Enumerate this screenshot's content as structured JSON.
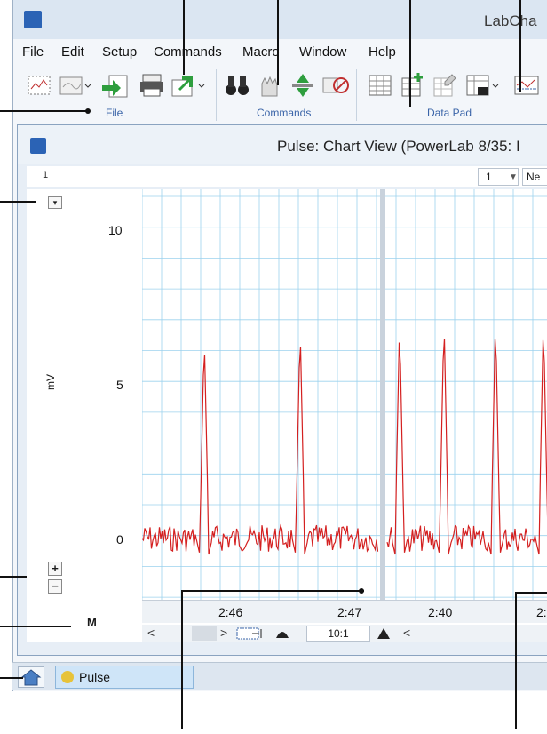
{
  "app": {
    "title": "LabCha"
  },
  "menu": [
    "File",
    "Edit",
    "Setup",
    "Commands",
    "Macro",
    "Window",
    "Help"
  ],
  "ribbon_groups": [
    {
      "label": "File"
    },
    {
      "label": "Commands"
    },
    {
      "label": "Data Pad"
    }
  ],
  "document": {
    "title": "Pulse: Chart View (PowerLab 8/35: I",
    "page_number": "1",
    "channel_select": "1",
    "next_label": "Ne"
  },
  "axis": {
    "ylabel": "mV",
    "yticks": [
      "10",
      "5",
      "0"
    ],
    "xticks_left": [
      "2:46",
      "2:47"
    ],
    "xticks_right": [
      "2:40",
      "2:"
    ]
  },
  "controls": {
    "zoom_in": "+",
    "zoom_out": "−",
    "scale_menu": "▾",
    "marker": "M",
    "compression": "10:1",
    "scroll_left": "<",
    "scroll_right": ">",
    "scroll_left2": "<"
  },
  "taskbar": {
    "tab_label": "Pulse"
  },
  "colors": {
    "trace": "#d42020",
    "grid": "#9cd2ee",
    "accent": "#3a64a8"
  }
}
